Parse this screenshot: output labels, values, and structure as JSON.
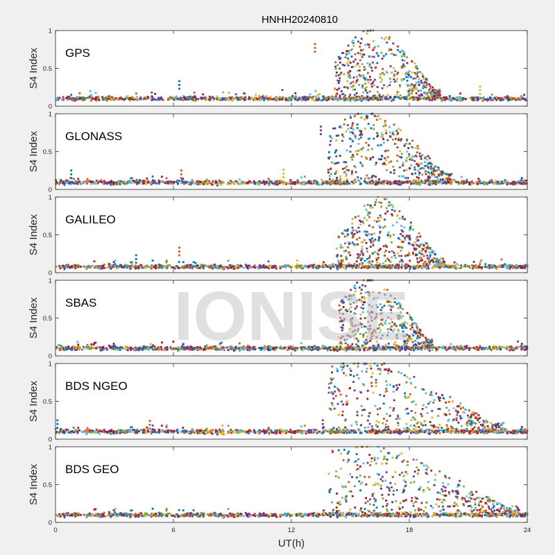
{
  "chart_data": {
    "type": "scatter",
    "title": "HNHH20240810",
    "xlabel": "UT(h)",
    "xlim": [
      0,
      24
    ],
    "xticks": [
      "0",
      "6",
      "12",
      "18",
      "24"
    ],
    "watermark": "IONISE",
    "colors": [
      "#0072BD",
      "#D95319",
      "#EDB120",
      "#7E2F8E",
      "#77AC30",
      "#4DBEEE",
      "#A2142F"
    ],
    "panels": [
      {
        "label": "GPS",
        "ylabel": "S4 Index",
        "ylim": [
          0,
          1
        ],
        "yticks": [
          "0",
          "0.5",
          "1"
        ],
        "baseline": 0.1,
        "event": {
          "start": 14.2,
          "end": 19.6,
          "peak": 16.2,
          "max": 1.0
        },
        "spikes": [
          {
            "x": 6.3,
            "y": 0.33
          },
          {
            "x": 13.2,
            "y": 0.82
          },
          {
            "x": 21.6,
            "y": 0.26
          },
          {
            "x": 4.9,
            "y": 0.18
          }
        ]
      },
      {
        "label": "GLONASS",
        "ylabel": "S4 Index",
        "ylim": [
          0,
          1
        ],
        "yticks": [
          "0",
          "0.5",
          "1"
        ],
        "baseline": 0.09,
        "event": {
          "start": 13.8,
          "end": 20.2,
          "peak": 15.8,
          "max": 1.0
        },
        "spikes": [
          {
            "x": 0.8,
            "y": 0.25
          },
          {
            "x": 6.4,
            "y": 0.25
          },
          {
            "x": 11.6,
            "y": 0.26
          },
          {
            "x": 13.5,
            "y": 0.83
          }
        ]
      },
      {
        "label": "GALILEO",
        "ylabel": "S4 Index",
        "ylim": [
          0,
          1
        ],
        "yticks": [
          "0",
          "0.5",
          "1"
        ],
        "baseline": 0.08,
        "event": {
          "start": 14.3,
          "end": 19.8,
          "peak": 16.5,
          "max": 0.95
        },
        "spikes": [
          {
            "x": 4.1,
            "y": 0.23
          },
          {
            "x": 6.3,
            "y": 0.33
          },
          {
            "x": 12.3,
            "y": 0.16
          }
        ]
      },
      {
        "label": "SBAS",
        "ylabel": "S4 Index",
        "ylim": [
          0,
          1
        ],
        "yticks": [
          "0",
          "0.5",
          "1"
        ],
        "baseline": 0.1,
        "event": {
          "start": 14.4,
          "end": 19.2,
          "peak": 16.0,
          "max": 1.0
        },
        "spikes": []
      },
      {
        "label": "BDS NGEO",
        "ylabel": "S4 Index",
        "ylim": [
          0,
          1
        ],
        "yticks": [
          "0",
          "0.5",
          "1"
        ],
        "baseline": 0.1,
        "event": {
          "start": 13.9,
          "end": 22.8,
          "peak": 15.6,
          "max": 1.0
        },
        "spikes": [
          {
            "x": 0.1,
            "y": 0.25
          },
          {
            "x": 4.8,
            "y": 0.24
          },
          {
            "x": 8.5,
            "y": 0.18
          },
          {
            "x": 13.6,
            "y": 0.25
          }
        ]
      },
      {
        "label": "BDS GEO",
        "ylabel": "S4 Index",
        "ylim": [
          0,
          1
        ],
        "yticks": [
          "0",
          "0.5",
          "1"
        ],
        "baseline": 0.1,
        "event": {
          "start": 13.9,
          "end": 23.6,
          "peak": 15.4,
          "max": 1.0
        },
        "spikes": []
      }
    ]
  }
}
